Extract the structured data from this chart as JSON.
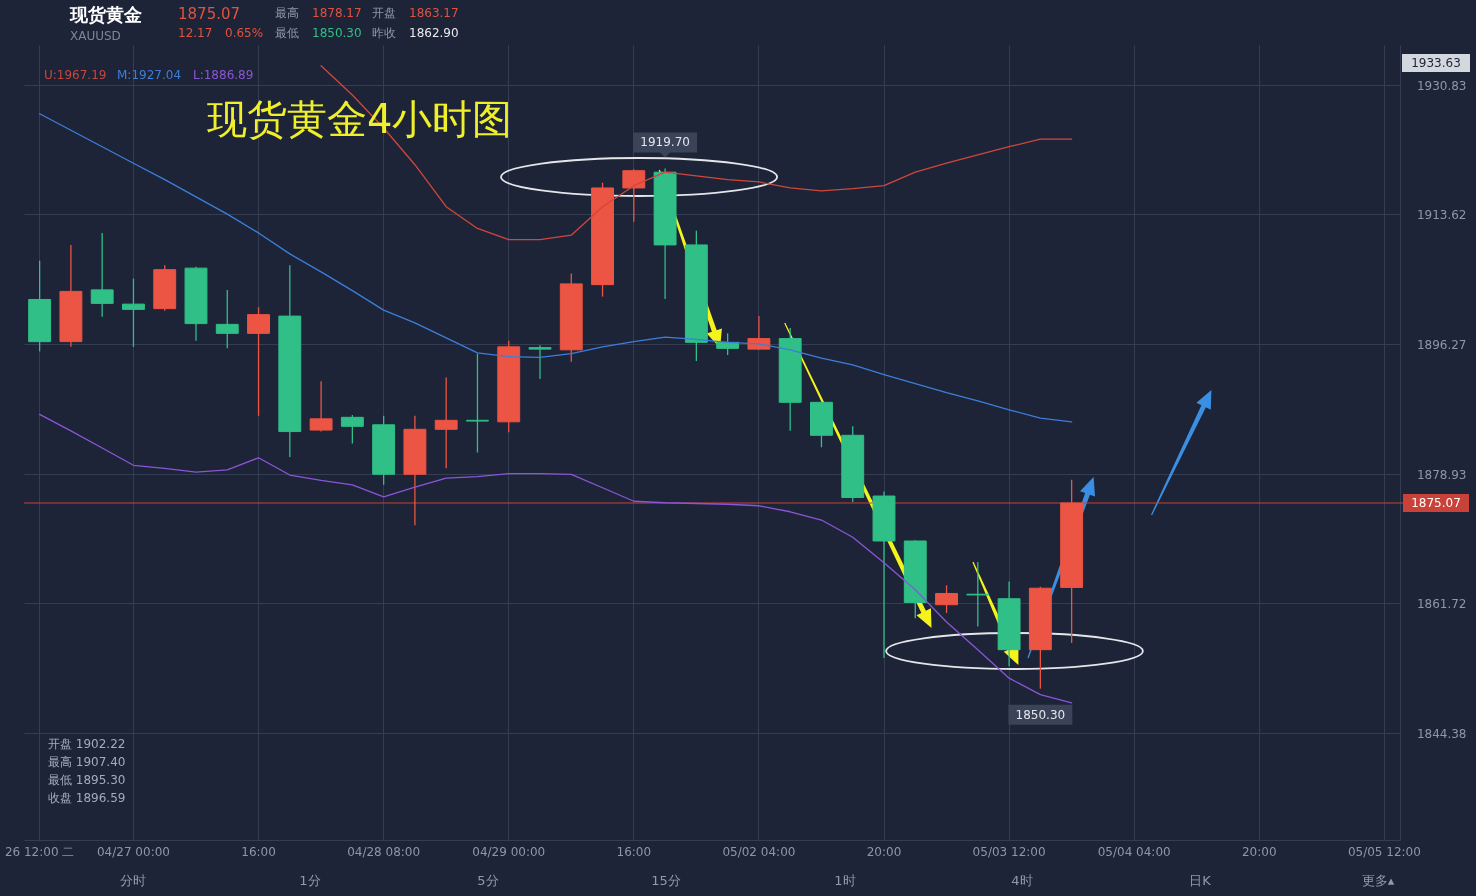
{
  "chart_data": {
    "type": "candlestick",
    "title": "现货黄金4小时图",
    "categories": [
      "26 12:00 二",
      null,
      null,
      "04/27 00:00",
      null,
      null,
      null,
      "16:00",
      null,
      null,
      null,
      "04/28 08:00",
      null,
      null,
      null,
      "04/29 00:00",
      null,
      null,
      null,
      "16:00",
      null,
      null,
      null,
      "05/02 04:00",
      null,
      null,
      null,
      "20:00",
      null,
      null,
      null,
      "05/03 12:00",
      null,
      null,
      null,
      "05/04 04:00",
      null,
      null,
      null,
      "20:00",
      null,
      null,
      null,
      "05/05 12:00"
    ],
    "ohlc": [
      [
        1902.22,
        1907.4,
        1895.3,
        1896.59
      ],
      [
        1896.6,
        1909.5,
        1895.9,
        1903.3
      ],
      [
        1903.5,
        1911.1,
        1899.9,
        1901.7
      ],
      [
        1901.6,
        1905.0,
        1895.9,
        1900.9
      ],
      [
        1901.0,
        1906.8,
        1900.7,
        1906.2
      ],
      [
        1906.4,
        1906.6,
        1896.7,
        1899.0
      ],
      [
        1898.9,
        1903.5,
        1895.7,
        1897.7
      ],
      [
        1897.7,
        1901.2,
        1886.7,
        1900.2
      ],
      [
        1900.0,
        1906.8,
        1881.2,
        1884.6
      ],
      [
        1884.8,
        1891.3,
        1884.6,
        1886.3
      ],
      [
        1886.5,
        1886.8,
        1883.0,
        1885.3
      ],
      [
        1885.5,
        1886.7,
        1877.5,
        1878.9
      ],
      [
        1878.9,
        1886.7,
        1872.1,
        1884.9
      ],
      [
        1884.9,
        1891.8,
        1879.7,
        1886.1
      ],
      [
        1886.1,
        1895.0,
        1881.8,
        1886.0
      ],
      [
        1885.9,
        1896.7,
        1884.5,
        1895.9
      ],
      [
        1895.8,
        1896.1,
        1891.6,
        1895.6
      ],
      [
        1895.5,
        1905.7,
        1893.9,
        1904.3
      ],
      [
        1904.2,
        1917.8,
        1902.6,
        1917.1
      ],
      [
        1917.1,
        1919.6,
        1912.6,
        1919.4
      ],
      [
        1919.2,
        1919.7,
        1902.3,
        1909.5
      ],
      [
        1909.5,
        1911.4,
        1894.0,
        1896.5
      ],
      [
        1896.5,
        1897.7,
        1894.8,
        1895.7
      ],
      [
        1895.6,
        1900.0,
        1895.5,
        1897.0
      ],
      [
        1897.0,
        1898.4,
        1884.7,
        1888.5
      ],
      [
        1888.5,
        1888.5,
        1882.5,
        1884.1
      ],
      [
        1884.1,
        1885.3,
        1875.2,
        1875.8
      ],
      [
        1876.0,
        1876.6,
        1854.4,
        1870.0
      ],
      [
        1870.0,
        1870.1,
        1859.7,
        1861.8
      ],
      [
        1861.5,
        1864.1,
        1860.4,
        1863.0
      ],
      [
        1862.9,
        1867.2,
        1858.6,
        1862.8
      ],
      [
        1862.3,
        1864.6,
        1853.3,
        1855.5
      ],
      [
        1855.5,
        1863.9,
        1850.3,
        1863.7
      ],
      [
        1863.8,
        1878.17,
        1856.4,
        1875.07
      ],
      null,
      null,
      null,
      null,
      null,
      null,
      null,
      null,
      null,
      null
    ],
    "colors": [
      "#2fbf87",
      "#ec5443",
      "#2fbf87",
      "#2fbf87",
      "#ec5443",
      "#2fbf87",
      "#2fbf87",
      "#ec5443",
      "#2fbf87",
      "#ec5443",
      "#2fbf87",
      "#2fbf87",
      "#ec5443",
      "#ec5443",
      "#2fbf87",
      "#ec5443",
      "#2fbf87",
      "#ec5443",
      "#ec5443",
      "#ec5443",
      "#2fbf87",
      "#2fbf87",
      "#2fbf87",
      "#ec5443",
      "#2fbf87",
      "#2fbf87",
      "#2fbf87",
      "#2fbf87",
      "#2fbf87",
      "#ec5443",
      "#2fbf87",
      "#2fbf87",
      "#ec5443",
      "#ec5443",
      null,
      null,
      null,
      null,
      null,
      null,
      null,
      null,
      null,
      null
    ],
    "series": [
      {
        "type": "line",
        "color": "#d0473c",
        "values": [
          null,
          null,
          null,
          null,
          null,
          null,
          null,
          null,
          null,
          1933.4,
          1929.5,
          1925.1,
          1920.2,
          1914.6,
          1911.7,
          1910.2,
          1910.2,
          1910.8,
          1914.6,
          1917.4,
          1919.2,
          1918.7,
          1918.2,
          1917.9,
          1917.1,
          1916.7,
          1917.0,
          1917.4,
          1919.2,
          1920.4,
          1921.5,
          1922.6,
          1923.6,
          1923.6,
          null,
          null,
          null,
          null,
          null,
          null,
          null,
          null,
          null,
          null
        ]
      },
      {
        "type": "line",
        "color": "#3c7edb",
        "values": [
          1927.0,
          1924.8,
          1922.6,
          1920.4,
          1918.2,
          1915.9,
          1913.6,
          1911.1,
          1908.3,
          1905.9,
          1903.4,
          1900.8,
          1899.1,
          1897.1,
          1895.1,
          1894.6,
          1894.5,
          1895.0,
          1895.9,
          1896.6,
          1897.2,
          1896.9,
          1896.5,
          1896.3,
          1895.5,
          1894.4,
          1893.5,
          1892.2,
          1891.0,
          1889.8,
          1888.7,
          1887.5,
          1886.4,
          1885.9,
          null,
          null,
          null,
          null,
          null,
          null,
          null,
          null,
          null,
          null
        ]
      },
      {
        "type": "line",
        "color": "#8b55d8",
        "values": [
          1886.9,
          1884.7,
          1882.4,
          1880.1,
          1879.7,
          1879.2,
          1879.5,
          1881.1,
          1878.8,
          1878.1,
          1877.5,
          1875.9,
          1877.2,
          1878.4,
          1878.6,
          1879.0,
          1879.0,
          1878.9,
          1877.1,
          1875.3,
          1875.1,
          1875.0,
          1874.9,
          1874.7,
          1873.9,
          1872.8,
          1870.5,
          1867.1,
          1863.5,
          1859.2,
          1855.5,
          1851.7,
          1849.5,
          1848.4,
          null,
          null,
          null,
          null,
          null,
          null,
          null,
          null,
          null,
          null
        ]
      }
    ],
    "ylim": [
      1830.11,
      1936.17
    ],
    "yticks": [
      1930.83,
      1913.62,
      1896.27,
      1878.93,
      1861.72,
      1844.38
    ],
    "grid": true,
    "ref_lines": [
      {
        "axis": "y",
        "value": 1875.07,
        "label": "1875.07",
        "color": "#c8423a"
      }
    ],
    "annotations": [
      "现货黄金",
      "XAUUSD",
      "1875.07",
      "12.17",
      "0.65%",
      "最高",
      "1878.17",
      "开盘",
      "1863.17",
      "最低",
      "1850.30",
      "昨收",
      "1862.90",
      "U:1967.19",
      "M:1927.04",
      "L:1886.89",
      "1933.63",
      {
        "text": "1919.70",
        "y": 1919.7
      },
      {
        "text": "1850.30",
        "y": 1850.3
      },
      "开盘 1902.22",
      "最高 1907.40",
      "最低 1895.30",
      "收盘 1896.59",
      "分时",
      "1分",
      "5分",
      "15分",
      "1时",
      "4时",
      "日K",
      "更多▴"
    ]
  }
}
